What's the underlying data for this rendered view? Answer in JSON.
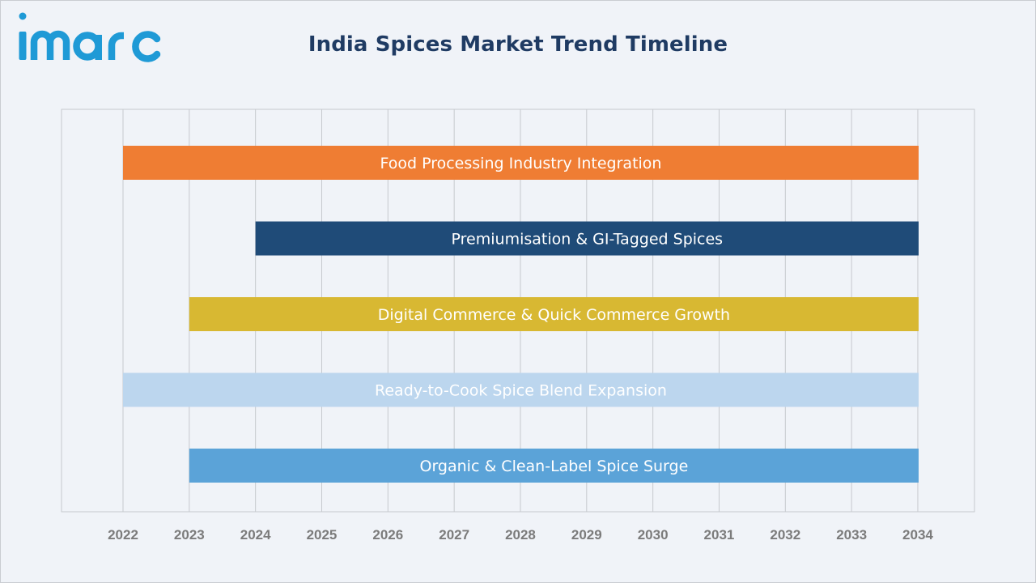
{
  "brand": {
    "logo_text": "imarc",
    "logo_color": "#1f9ad6"
  },
  "chart_data": {
    "type": "bar",
    "orientation": "horizontal-timeline",
    "title": "India Spices Market Trend Timeline",
    "xlabel": "",
    "ylabel": "",
    "xlim": [
      2021.1,
      2034.8
    ],
    "x_ticks": [
      "2022",
      "2023",
      "2024",
      "2025",
      "2026",
      "2027",
      "2028",
      "2029",
      "2030",
      "2031",
      "2032",
      "2033",
      "2034"
    ],
    "grid": true,
    "legend": "none",
    "series": [
      {
        "name": "Food Processing Industry Integration",
        "start": 2022,
        "end": 2034,
        "color": "#ef7d33"
      },
      {
        "name": "Premiumisation & GI-Tagged Spices",
        "start": 2024,
        "end": 2034,
        "color": "#1f4b78"
      },
      {
        "name": "Digital Commerce & Quick Commerce Growth",
        "start": 2023,
        "end": 2034,
        "color": "#d8b832"
      },
      {
        "name": "Ready-to-Cook Spice Blend Expansion",
        "start": 2022,
        "end": 2034,
        "color": "#bcd6ee"
      },
      {
        "name": "Organic & Clean-Label Spice Surge",
        "start": 2023,
        "end": 2034,
        "color": "#5ba3d8"
      }
    ]
  }
}
